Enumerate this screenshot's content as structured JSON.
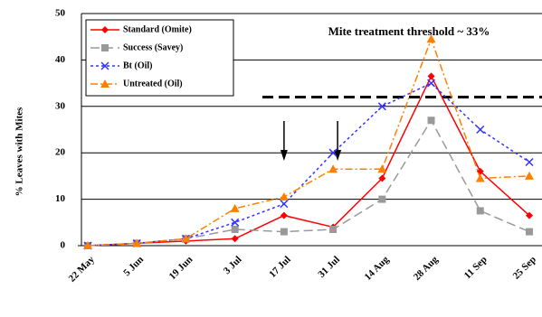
{
  "chart_data": {
    "type": "line",
    "y_label": "% Leaves with Mites",
    "annotation": "Mite treatment threshold ~ 33%",
    "threshold": 32,
    "categories": [
      "22 May",
      "5 Jun",
      "19 Jun",
      "3 Jul",
      "17 Jul",
      "31 Jul",
      "14 Aug",
      "28 Aug",
      "11 Sep",
      "25 Sep"
    ],
    "series": [
      {
        "name": "Standard (Omite)",
        "color": "#ff0000",
        "marker": "diamond",
        "dash": "",
        "values": [
          0,
          0.5,
          1,
          1.5,
          6.5,
          4,
          14.5,
          36.5,
          16,
          6.5
        ]
      },
      {
        "name": "Success (Savey)",
        "color": "#999999",
        "marker": "square",
        "dash": "10 5",
        "values": [
          0,
          0.5,
          1.5,
          3.5,
          3,
          3.5,
          10,
          27,
          7.5,
          3
        ]
      },
      {
        "name": "Bt (Oil)",
        "color": "#3333ff",
        "marker": "x",
        "dash": "3 3",
        "values": [
          0,
          0.5,
          1.5,
          5,
          9,
          20,
          30,
          35,
          25,
          18
        ]
      },
      {
        "name": "Untreated (Oil)",
        "color": "#ff8000",
        "marker": "triangle",
        "dash": "8 3 2 3",
        "values": [
          0,
          0.5,
          1.5,
          8,
          10.5,
          16.5,
          16.5,
          44.5,
          14.5,
          15
        ]
      }
    ],
    "ylim": [
      0,
      50
    ],
    "yticks": [
      0,
      10,
      20,
      30,
      40,
      50
    ],
    "grid": true
  }
}
